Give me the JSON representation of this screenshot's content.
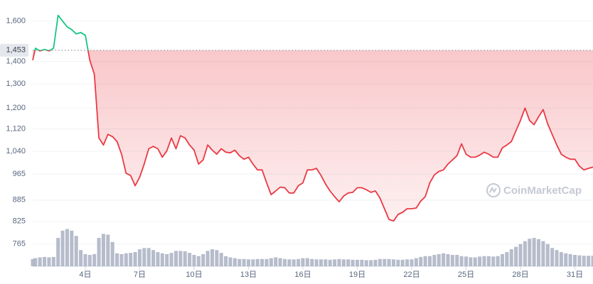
{
  "chart_data": {
    "type": "line",
    "log": true,
    "grid": true,
    "watermark": "CoinMarketCap",
    "baseline": {
      "value": 1453,
      "label": "1,453"
    },
    "up_color": "#16c784",
    "down_color": "#ea3943",
    "volume_color": "#a9b0c2",
    "xlim": [
      1.1,
      32
    ],
    "ylim": [
      711,
      1716
    ],
    "volume_ylim": [
      0,
      100
    ],
    "yticks": [
      {
        "value": 1600,
        "label": "1,600"
      },
      {
        "value": 1400,
        "label": "1,400"
      },
      {
        "value": 1300,
        "label": "1,300"
      },
      {
        "value": 1200,
        "label": "1,200"
      },
      {
        "value": 1120,
        "label": "1,120"
      },
      {
        "value": 1040,
        "label": "1,040"
      },
      965,
      885,
      825,
      765
    ],
    "xticks": [
      {
        "value": 4,
        "label": "4日"
      },
      {
        "value": 7,
        "label": "7日"
      },
      {
        "value": 10,
        "label": "10日"
      },
      {
        "value": 13,
        "label": "13日"
      },
      {
        "value": 16,
        "label": "16日"
      },
      {
        "value": 19,
        "label": "19日"
      },
      {
        "value": 22,
        "label": "22日"
      },
      {
        "value": 25,
        "label": "25日"
      },
      {
        "value": 28,
        "label": "28日"
      },
      {
        "value": 31,
        "label": "31日"
      }
    ],
    "x": [
      1.1,
      1.25,
      1.5,
      1.75,
      2,
      2.25,
      2.5,
      2.75,
      3,
      3.25,
      3.5,
      3.75,
      4,
      4.25,
      4.5,
      4.75,
      5,
      5.25,
      5.5,
      5.75,
      6,
      6.25,
      6.5,
      6.75,
      7,
      7.25,
      7.5,
      7.75,
      8,
      8.25,
      8.5,
      8.75,
      9,
      9.25,
      9.5,
      9.75,
      10,
      10.25,
      10.5,
      10.75,
      11,
      11.25,
      11.5,
      11.75,
      12,
      12.25,
      12.5,
      12.75,
      13,
      13.25,
      13.5,
      13.75,
      14,
      14.25,
      14.5,
      14.75,
      15,
      15.25,
      15.5,
      15.75,
      16,
      16.25,
      16.5,
      16.75,
      17,
      17.25,
      17.5,
      17.75,
      18,
      18.25,
      18.5,
      18.75,
      19,
      19.25,
      19.5,
      19.75,
      20,
      20.25,
      20.5,
      20.75,
      21,
      21.25,
      21.5,
      21.75,
      22,
      22.25,
      22.5,
      22.75,
      23,
      23.25,
      23.5,
      23.75,
      24,
      24.25,
      24.5,
      24.75,
      25,
      25.25,
      25.5,
      25.75,
      26,
      26.25,
      26.5,
      26.75,
      27,
      27.25,
      27.5,
      27.75,
      28,
      28.25,
      28.5,
      28.75,
      29,
      29.25,
      29.5,
      29.75,
      30,
      30.25,
      30.5,
      30.75,
      31,
      31.25,
      31.5,
      31.75,
      32
    ],
    "values": [
      1406,
      1463,
      1450,
      1457,
      1450,
      1463,
      1631,
      1600,
      1570,
      1556,
      1534,
      1541,
      1527,
      1406,
      1342,
      1087,
      1062,
      1100,
      1092,
      1074,
      1030,
      967,
      960,
      928,
      955,
      997,
      1049,
      1057,
      1049,
      1020,
      1042,
      1087,
      1049,
      1095,
      1087,
      1062,
      1044,
      997,
      1011,
      1062,
      1044,
      1030,
      1049,
      1037,
      1035,
      1044,
      1025,
      1013,
      1020,
      997,
      978,
      978,
      937,
      901,
      912,
      924,
      922,
      906,
      906,
      928,
      937,
      978,
      978,
      983,
      960,
      933,
      912,
      895,
      880,
      897,
      906,
      908,
      922,
      922,
      916,
      908,
      912,
      891,
      860,
      830,
      826,
      844,
      850,
      860,
      860,
      862,
      882,
      895,
      937,
      962,
      973,
      978,
      997,
      1011,
      1025,
      1066,
      1030,
      1020,
      1020,
      1027,
      1037,
      1030,
      1020,
      1020,
      1052,
      1062,
      1074,
      1113,
      1152,
      1200,
      1152,
      1136,
      1166,
      1194,
      1139,
      1100,
      1062,
      1030,
      1020,
      1013,
      1013,
      990,
      978,
      983,
      987
    ],
    "volume": [
      18,
      20,
      22,
      23,
      22,
      23,
      70,
      88,
      92,
      88,
      75,
      40,
      30,
      28,
      30,
      70,
      80,
      78,
      60,
      32,
      30,
      32,
      33,
      35,
      42,
      45,
      45,
      40,
      35,
      32,
      30,
      33,
      38,
      38,
      37,
      33,
      28,
      25,
      30,
      38,
      42,
      40,
      33,
      25,
      22,
      20,
      18,
      18,
      17,
      17,
      18,
      18,
      18,
      20,
      22,
      20,
      18,
      17,
      17,
      18,
      20,
      20,
      18,
      17,
      17,
      17,
      16,
      17,
      18,
      17,
      17,
      16,
      16,
      16,
      15,
      15,
      16,
      18,
      18,
      18,
      17,
      16,
      16,
      17,
      17,
      20,
      23,
      25,
      25,
      28,
      30,
      32,
      30,
      28,
      28,
      25,
      24,
      22,
      22,
      24,
      25,
      25,
      24,
      25,
      30,
      35,
      42,
      48,
      55,
      62,
      68,
      70,
      67,
      62,
      55,
      45,
      40,
      35,
      32,
      30,
      28,
      27,
      26,
      26,
      26
    ]
  }
}
